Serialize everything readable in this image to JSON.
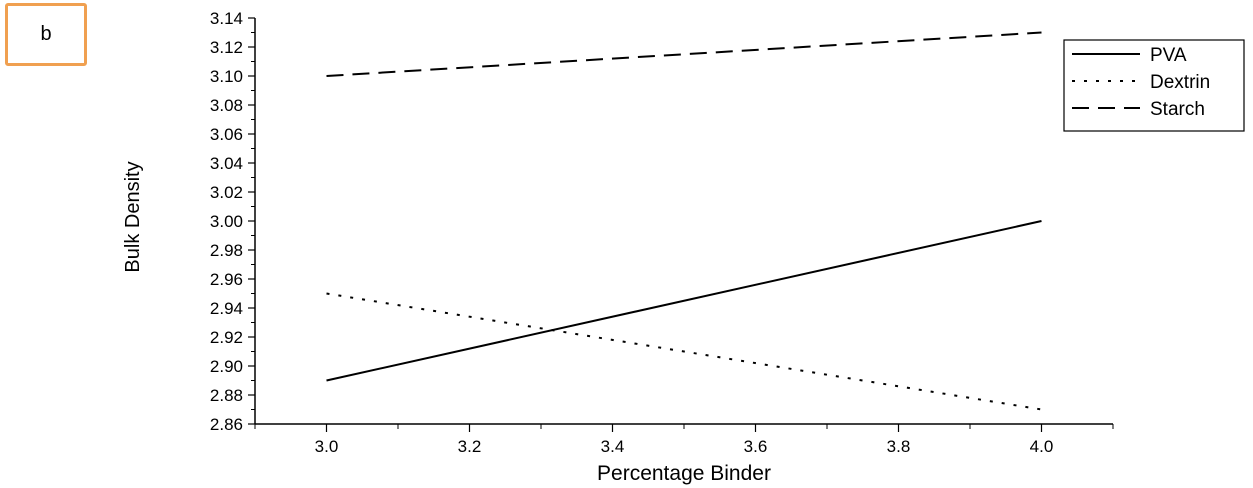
{
  "panel_label": "b",
  "chart_data": {
    "type": "line",
    "title": "",
    "xlabel": "Percentage Binder",
    "ylabel": "Bulk Density",
    "xlim": [
      2.9,
      4.1
    ],
    "ylim": [
      2.86,
      3.14
    ],
    "xticks": [
      3.0,
      3.2,
      3.4,
      3.6,
      3.8,
      4.0
    ],
    "xtick_labels": [
      "3.0",
      "3.2",
      "3.4",
      "3.6",
      "3.8",
      "4.0"
    ],
    "yticks": [
      2.86,
      2.88,
      2.9,
      2.92,
      2.94,
      2.96,
      2.98,
      3.0,
      3.02,
      3.04,
      3.06,
      3.08,
      3.1,
      3.12,
      3.14
    ],
    "ytick_labels": [
      "2.86",
      "2.88",
      "2.90",
      "2.92",
      "2.94",
      "2.96",
      "2.98",
      "3.00",
      "3.02",
      "3.04",
      "3.06",
      "3.08",
      "3.10",
      "3.12",
      "3.14"
    ],
    "grid": false,
    "legend_position": "top-right",
    "series": [
      {
        "name": "PVA",
        "style": "solid",
        "x": [
          3.0,
          4.0
        ],
        "y": [
          2.89,
          3.0
        ]
      },
      {
        "name": "Dextrin",
        "style": "dotted",
        "x": [
          3.0,
          4.0
        ],
        "y": [
          2.95,
          2.87
        ]
      },
      {
        "name": "Starch",
        "style": "dashed",
        "x": [
          3.0,
          4.0
        ],
        "y": [
          3.1,
          3.13
        ]
      }
    ]
  }
}
